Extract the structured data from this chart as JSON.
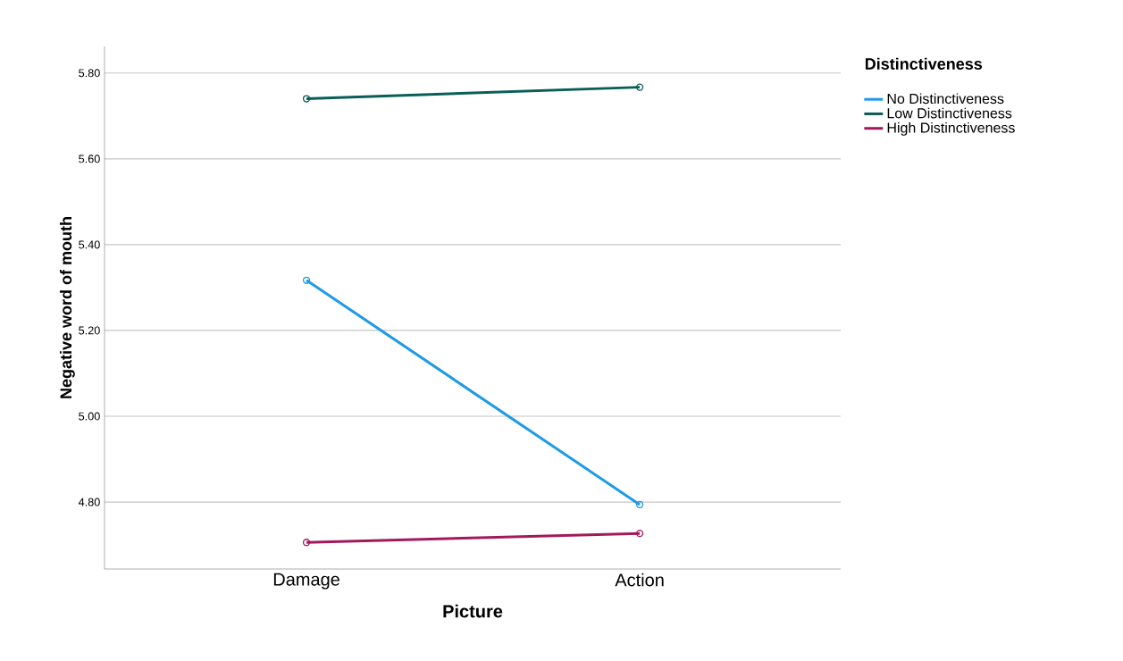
{
  "chart_data": {
    "type": "line",
    "xlabel": "Picture",
    "ylabel": "Negative word of mouth",
    "legend_title": "Distinctiveness",
    "categories": [
      "Damage",
      "Action"
    ],
    "series": [
      {
        "name": "No Distinctiveness",
        "color": "#1f9ae8",
        "values": [
          5.317,
          4.794
        ]
      },
      {
        "name": "Low Distinctiveness",
        "color": "#0a5e58",
        "values": [
          5.74,
          5.767
        ]
      },
      {
        "name": "High Distinctiveness",
        "color": "#a21a5c",
        "values": [
          4.706,
          4.727
        ]
      }
    ],
    "ylim": [
      4.644,
      5.862
    ],
    "yticks": [
      {
        "value": 4.8,
        "label": "4.80"
      },
      {
        "value": 5.0,
        "label": "5.00"
      },
      {
        "value": 5.2,
        "label": "5.20"
      },
      {
        "value": 5.4,
        "label": "5.40"
      },
      {
        "value": 5.6,
        "label": "5.60"
      },
      {
        "value": 5.8,
        "label": "5.80"
      }
    ],
    "grid": "y",
    "legend": "top right",
    "marker": "circle",
    "line_style": "solid"
  }
}
